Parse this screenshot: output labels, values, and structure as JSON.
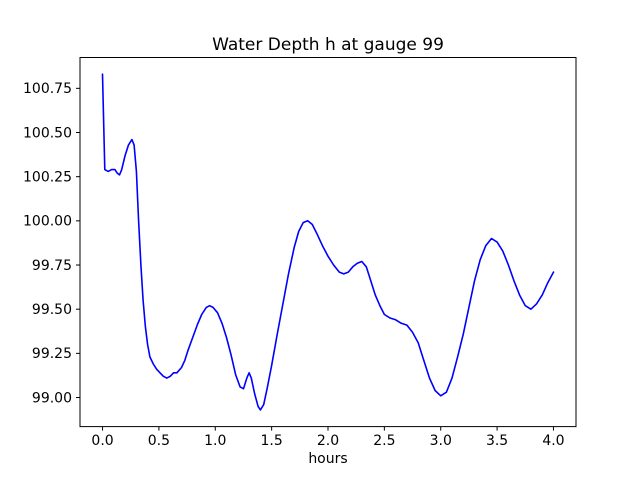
{
  "figure": {
    "background_color": "#ffffff",
    "text_color": "#000000",
    "spine_color": "#000000"
  },
  "chart_data": {
    "type": "line",
    "title": "Water Depth h at gauge 99",
    "xlabel": "hours",
    "ylabel": "",
    "grid": false,
    "legend_position": "none",
    "xlim": [
      -0.2,
      4.2
    ],
    "ylim": [
      98.8355,
      100.9245
    ],
    "xticks": [
      0.0,
      0.5,
      1.0,
      1.5,
      2.0,
      2.5,
      3.0,
      3.5,
      4.0
    ],
    "xtick_labels": [
      "0.0",
      "0.5",
      "1.0",
      "1.5",
      "2.0",
      "2.5",
      "3.0",
      "3.5",
      "4.0"
    ],
    "yticks": [
      99.0,
      99.25,
      99.5,
      99.75,
      100.0,
      100.25,
      100.5,
      100.75
    ],
    "ytick_labels": [
      "99.00",
      "99.25",
      "99.50",
      "99.75",
      "100.00",
      "100.25",
      "100.50",
      "100.75"
    ],
    "line_color": "#0000ff",
    "line_width": 1.6,
    "series": [
      {
        "name": "water-depth-h",
        "x": [
          0.0,
          0.02,
          0.05,
          0.08,
          0.11,
          0.13,
          0.15,
          0.17,
          0.2,
          0.23,
          0.26,
          0.28,
          0.3,
          0.32,
          0.34,
          0.36,
          0.38,
          0.4,
          0.42,
          0.45,
          0.48,
          0.51,
          0.54,
          0.57,
          0.6,
          0.63,
          0.66,
          0.7,
          0.73,
          0.76,
          0.8,
          0.84,
          0.88,
          0.92,
          0.95,
          0.98,
          1.02,
          1.06,
          1.1,
          1.14,
          1.18,
          1.22,
          1.25,
          1.28,
          1.3,
          1.32,
          1.35,
          1.38,
          1.4,
          1.43,
          1.46,
          1.5,
          1.55,
          1.6,
          1.65,
          1.7,
          1.74,
          1.78,
          1.82,
          1.86,
          1.9,
          1.95,
          2.0,
          2.05,
          2.1,
          2.14,
          2.18,
          2.22,
          2.26,
          2.3,
          2.34,
          2.38,
          2.42,
          2.46,
          2.5,
          2.55,
          2.6,
          2.65,
          2.7,
          2.75,
          2.8,
          2.85,
          2.9,
          2.95,
          3.0,
          3.05,
          3.1,
          3.15,
          3.2,
          3.25,
          3.3,
          3.35,
          3.4,
          3.45,
          3.5,
          3.55,
          3.6,
          3.65,
          3.7,
          3.75,
          3.8,
          3.85,
          3.9,
          3.95,
          4.0
        ],
        "y": [
          100.83,
          100.29,
          100.28,
          100.29,
          100.29,
          100.27,
          100.26,
          100.29,
          100.37,
          100.43,
          100.46,
          100.43,
          100.28,
          100.0,
          99.75,
          99.55,
          99.4,
          99.3,
          99.23,
          99.19,
          99.16,
          99.14,
          99.12,
          99.11,
          99.12,
          99.14,
          99.14,
          99.17,
          99.21,
          99.27,
          99.34,
          99.41,
          99.47,
          99.51,
          99.52,
          99.51,
          99.48,
          99.42,
          99.34,
          99.24,
          99.13,
          99.06,
          99.05,
          99.11,
          99.14,
          99.11,
          99.02,
          98.95,
          98.93,
          98.96,
          99.05,
          99.18,
          99.36,
          99.53,
          99.7,
          99.85,
          99.94,
          99.99,
          100.0,
          99.98,
          99.93,
          99.86,
          99.8,
          99.75,
          99.71,
          99.7,
          99.71,
          99.74,
          99.76,
          99.77,
          99.74,
          99.66,
          99.58,
          99.52,
          99.47,
          99.45,
          99.44,
          99.42,
          99.41,
          99.37,
          99.31,
          99.21,
          99.11,
          99.04,
          99.01,
          99.03,
          99.11,
          99.23,
          99.36,
          99.51,
          99.66,
          99.78,
          99.86,
          99.9,
          99.88,
          99.83,
          99.75,
          99.66,
          99.58,
          99.52,
          99.5,
          99.53,
          99.58,
          99.65,
          99.71
        ]
      }
    ]
  }
}
